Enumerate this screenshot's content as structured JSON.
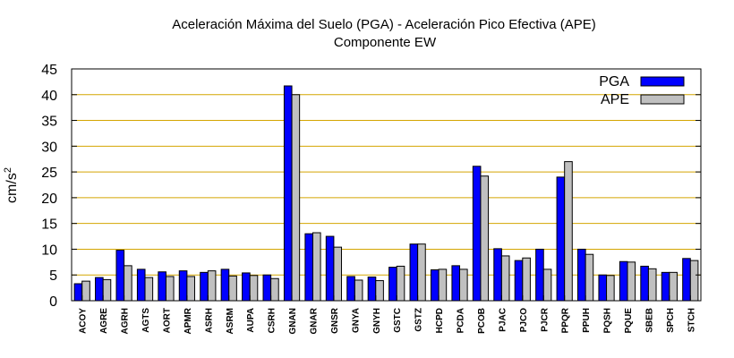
{
  "chart_data": {
    "type": "bar",
    "title": "Aceleración Máxima del Suelo (PGA) -  Aceleración Pico Efectiva (APE)",
    "subtitle": "Componente EW",
    "xlabel": "",
    "ylabel": "cm/s",
    "ylabel_superscript": "2",
    "ylim": [
      0,
      45
    ],
    "yticks": [
      0,
      5,
      10,
      15,
      20,
      25,
      30,
      35,
      40,
      45
    ],
    "grid": true,
    "legend_position": "top-right",
    "categories": [
      "ACOY",
      "AGRE",
      "AGRH",
      "AGTS",
      "AORT",
      "APMR",
      "ASRH",
      "ASRM",
      "AUPA",
      "CSRH",
      "GNAN",
      "GNAR",
      "GNSR",
      "GNYA",
      "GNYH",
      "GSTC",
      "GSTZ",
      "HCPD",
      "PCDA",
      "PCOB",
      "PJAC",
      "PJCO",
      "PJCR",
      "PPQR",
      "PPUH",
      "PQSH",
      "PQUE",
      "SBEB",
      "SPCH",
      "STCH"
    ],
    "series": [
      {
        "name": "PGA",
        "color": "#0000ff",
        "values": [
          3.3,
          4.5,
          9.8,
          6.1,
          5.6,
          5.8,
          5.5,
          6.1,
          5.4,
          5.0,
          41.7,
          13.0,
          12.5,
          4.7,
          4.6,
          6.5,
          11.0,
          6.0,
          6.8,
          26.1,
          10.1,
          7.8,
          10.0,
          24.0,
          10.0,
          5.0,
          7.6,
          6.7,
          5.5,
          8.2
        ]
      },
      {
        "name": "APE",
        "color": "#c0c0c0",
        "values": [
          3.8,
          4.1,
          6.8,
          4.5,
          4.7,
          4.7,
          5.8,
          4.8,
          4.9,
          4.3,
          40.0,
          13.2,
          10.4,
          4.0,
          3.9,
          6.7,
          11.0,
          6.1,
          6.1,
          24.2,
          8.7,
          8.3,
          6.1,
          27.0,
          9.0,
          4.9,
          7.5,
          6.2,
          5.5,
          7.8
        ]
      }
    ]
  }
}
